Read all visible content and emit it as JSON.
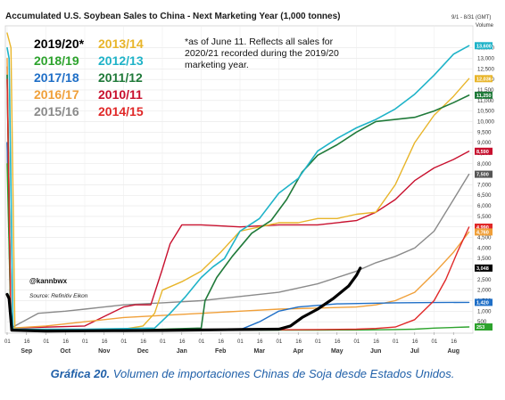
{
  "chart_data": {
    "type": "line",
    "title": "Accumulated U.S. Soybean Sales to China - Next Marketing Year (1,000 tonnes)",
    "date_range_label": "9/1 - 8/31 (GMT)",
    "volume_label": "Volume",
    "ylim": [
      0,
      14500
    ],
    "yticks": [
      500,
      1000,
      1500,
      2000,
      2500,
      3000,
      3500,
      4000,
      4500,
      5000,
      5500,
      6000,
      6500,
      7000,
      7500,
      8000,
      8500,
      9000,
      9500,
      10000,
      10500,
      11000,
      11500,
      12000,
      12500,
      13000,
      13500
    ],
    "ytick_labels": [
      "500",
      "1,000",
      "1,500",
      "2,000",
      "2,500",
      "3,000",
      "3,500",
      "4,000",
      "4,500",
      "5,000",
      "5,500",
      "6,000",
      "6,500",
      "7,000",
      "7,500",
      "8,000",
      "8,500",
      "9,000",
      "9,500",
      "10,000",
      "10,500",
      "11,000",
      "11,500",
      "12,000",
      "12,500",
      "13,000",
      "13,500"
    ],
    "x_months": [
      "Sep",
      "Oct",
      "Nov",
      "Dec",
      "Jan",
      "Feb",
      "Mar",
      "Apr",
      "May",
      "Jun",
      "Jul",
      "Aug"
    ],
    "x_day_labels": [
      "01",
      "16",
      "01",
      "16",
      "01",
      "16",
      "01",
      "16",
      "01",
      "16",
      "01",
      "16",
      "01",
      "16",
      "01",
      "16",
      "01",
      "16",
      "01",
      "16",
      "01",
      "16",
      "01",
      "16"
    ],
    "xlim": [
      0,
      12
    ],
    "legend": [
      {
        "label": "2019/20*",
        "color": "#000000"
      },
      {
        "label": "2013/14",
        "color": "#e8b52a"
      },
      {
        "label": "2018/19",
        "color": "#2da32d"
      },
      {
        "label": "2012/13",
        "color": "#1fb3c8"
      },
      {
        "label": "2017/18",
        "color": "#1f6fc7"
      },
      {
        "label": "2011/12",
        "color": "#207a3a"
      },
      {
        "label": "2016/17",
        "color": "#f0a03a"
      },
      {
        "label": "2010/11",
        "color": "#c8102e"
      },
      {
        "label": "2015/16",
        "color": "#8a8a8a"
      },
      {
        "label": "2014/15",
        "color": "#e02828"
      }
    ],
    "note": [
      "*as of June 11. Reflects all sales for",
      "2020/21 recorded during the 2019/20",
      "marketing year."
    ],
    "handle": "@kannbwx",
    "source": "Source: Refinitiv Eikon",
    "end_labels": [
      {
        "value": "13,600",
        "color": "#1fb3c8",
        "y": 13600
      },
      {
        "value": "12,036",
        "color": "#e8b52a",
        "y": 12036
      },
      {
        "value": "11,250",
        "color": "#207a3a",
        "y": 11250
      },
      {
        "value": "8,590",
        "color": "#c8102e",
        "y": 8590
      },
      {
        "value": "7,500",
        "color": "#555555",
        "y": 7500
      },
      {
        "value": "4,990",
        "color": "#e02828",
        "y": 4990
      },
      {
        "value": "4,760",
        "color": "#f0a03a",
        "y": 4760
      },
      {
        "value": "3,048",
        "color": "#000000",
        "y": 3048
      },
      {
        "value": "1,420",
        "color": "#1f6fc7",
        "y": 1420
      },
      {
        "value": "253",
        "color": "#2da32d",
        "y": 253
      }
    ],
    "series": [
      {
        "name": "2019/20*",
        "color": "#000000",
        "width": 3.2,
        "x": [
          0.0,
          0.05,
          0.12,
          1,
          2,
          3,
          4,
          5,
          6,
          7,
          7.3,
          7.6,
          8.0,
          8.4,
          8.8,
          9.0,
          9.1
        ],
        "y": [
          1800,
          1600,
          100,
          60,
          70,
          80,
          90,
          110,
          130,
          150,
          300,
          700,
          1100,
          1600,
          2200,
          2700,
          3048
        ]
      },
      {
        "name": "2013/14",
        "color": "#e8b52a",
        "width": 1.4,
        "x": [
          0.0,
          0.1,
          0.2,
          1.5,
          3.0,
          3.5,
          3.8,
          4.0,
          4.5,
          5.0,
          5.5,
          6.0,
          6.5,
          7.0,
          7.5,
          8.0,
          8.5,
          9.0,
          9.5,
          10.0,
          10.5,
          11.0,
          11.5,
          11.9
        ],
        "y": [
          14200,
          13500,
          120,
          120,
          150,
          300,
          900,
          2000,
          2400,
          2900,
          3800,
          4800,
          5000,
          5200,
          5200,
          5400,
          5400,
          5600,
          5700,
          7000,
          9000,
          10300,
          11200,
          12036
        ]
      },
      {
        "name": "2018/19",
        "color": "#2da32d",
        "width": 1.4,
        "x": [
          0.0,
          0.1,
          2,
          4,
          6,
          8,
          9,
          10,
          10.5,
          11,
          11.9
        ],
        "y": [
          8000,
          150,
          100,
          100,
          100,
          100,
          110,
          130,
          150,
          200,
          253
        ]
      },
      {
        "name": "2012/13",
        "color": "#1fb3c8",
        "width": 1.6,
        "x": [
          0.0,
          0.05,
          0.15,
          2.0,
          3.8,
          4.2,
          4.6,
          5.0,
          5.3,
          5.6,
          6.0,
          6.5,
          7.0,
          7.5,
          8.0,
          8.5,
          9.0,
          9.5,
          10.0,
          10.5,
          11.0,
          11.5,
          11.9
        ],
        "y": [
          13500,
          13000,
          150,
          150,
          200,
          900,
          1700,
          2600,
          3100,
          3500,
          4800,
          5400,
          6600,
          7300,
          8600,
          9200,
          9700,
          10100,
          10600,
          11300,
          12200,
          13200,
          13600
        ]
      },
      {
        "name": "2017/18",
        "color": "#1f6fc7",
        "width": 1.4,
        "x": [
          0.0,
          0.1,
          2,
          4,
          6.0,
          6.5,
          7.0,
          7.5,
          8.5,
          10,
          11,
          11.9
        ],
        "y": [
          9000,
          150,
          120,
          120,
          120,
          500,
          1000,
          1200,
          1350,
          1400,
          1410,
          1420
        ]
      },
      {
        "name": "2011/12",
        "color": "#207a3a",
        "width": 1.6,
        "x": [
          0.0,
          0.1,
          2.0,
          3.5,
          5.0,
          5.1,
          5.4,
          5.8,
          6.3,
          6.8,
          7.2,
          7.6,
          8.0,
          8.5,
          9.0,
          9.5,
          10.0,
          10.5,
          11.0,
          11.5,
          11.9
        ],
        "y": [
          12200,
          100,
          100,
          120,
          200,
          1500,
          2600,
          3600,
          4700,
          5300,
          6300,
          7600,
          8400,
          8900,
          9500,
          10000,
          10100,
          10200,
          10500,
          10900,
          11250
        ]
      },
      {
        "name": "2016/17",
        "color": "#f0a03a",
        "width": 1.4,
        "x": [
          0.0,
          0.1,
          1.0,
          2.0,
          3.0,
          4.0,
          5.0,
          6.0,
          7.0,
          8.0,
          9.0,
          9.5,
          10.0,
          10.5,
          11.0,
          11.5,
          11.9
        ],
        "y": [
          13000,
          200,
          300,
          500,
          700,
          800,
          900,
          1000,
          1100,
          1150,
          1200,
          1300,
          1500,
          1900,
          2800,
          3800,
          4760
        ]
      },
      {
        "name": "2010/11",
        "color": "#c8102e",
        "width": 1.4,
        "x": [
          0.0,
          0.1,
          2.0,
          3.0,
          3.3,
          3.7,
          4.0,
          4.2,
          4.5,
          5.0,
          6.0,
          7.0,
          8.0,
          9.0,
          9.5,
          10.0,
          10.5,
          11.0,
          11.5,
          11.9
        ],
        "y": [
          12600,
          200,
          300,
          1200,
          1300,
          1300,
          3000,
          4200,
          5100,
          5100,
          5000,
          5100,
          5100,
          5300,
          5700,
          6300,
          7200,
          7800,
          8200,
          8590
        ]
      },
      {
        "name": "2015/16",
        "color": "#8a8a8a",
        "width": 1.4,
        "x": [
          0.0,
          0.1,
          0.8,
          1.5,
          2.0,
          2.5,
          3.0,
          4.0,
          5.0,
          6.0,
          7.0,
          7.5,
          8.0,
          8.5,
          9.0,
          9.5,
          10.0,
          10.5,
          11.0,
          11.5,
          11.9
        ],
        "y": [
          9000,
          200,
          900,
          1000,
          1100,
          1200,
          1300,
          1400,
          1500,
          1700,
          1900,
          2100,
          2300,
          2600,
          2900,
          3300,
          3600,
          4000,
          4800,
          6300,
          7500
        ]
      },
      {
        "name": "2014/15",
        "color": "#e02828",
        "width": 1.4,
        "x": [
          0.0,
          0.1,
          2.0,
          4.0,
          6.0,
          8.0,
          9.0,
          9.5,
          10.0,
          10.5,
          11.0,
          11.3,
          11.6,
          11.9
        ],
        "y": [
          12000,
          100,
          100,
          100,
          110,
          130,
          150,
          180,
          250,
          600,
          1500,
          2500,
          3800,
          4990
        ]
      }
    ]
  },
  "caption": {
    "label": "Gráfica 20.",
    "text": " Volumen de importaciones Chinas de Soja desde Estados Unidos."
  }
}
